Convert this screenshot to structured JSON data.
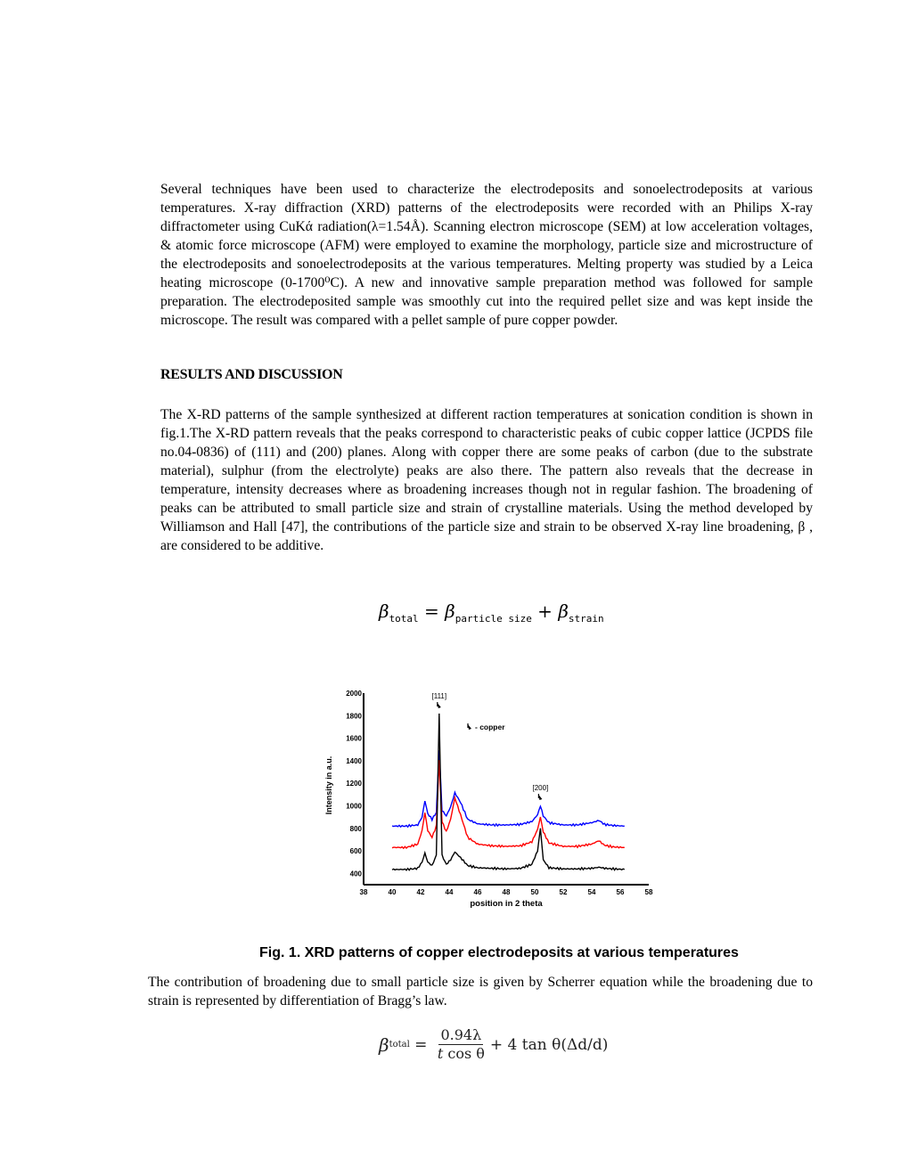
{
  "paragraphs": {
    "methods": "Several techniques have been used to characterize the electrodeposits and sonoelectrodeposits at various temperatures. X-ray diffraction (XRD) patterns of the electrodeposits were recorded with an Philips X-ray diffractometer using CuKά radiation(λ=1.54Å). Scanning electron microscope (SEM) at low acceleration voltages, & atomic force microscope (AFM) were employed to examine the morphology, particle size and microstructure of the electrodeposits and sonoelectrodeposits at the various temperatures. Melting property was studied by a Leica heating microscope (0-1700⁰C). A new and innovative sample preparation method was followed for sample preparation. The electrodeposited sample was smoothly cut into the required pellet size and was kept inside the microscope. The result was compared with a pellet sample of pure copper powder.",
    "results_heading": "RESULTS AND DISCUSSION",
    "results": "The X-RD patterns of the sample synthesized at different raction temperatures at sonication condition is shown in fig.1.The X-RD pattern reveals that the peaks correspond to characteristic peaks of cubic copper lattice (JCPDS file no.04-0836) of (111) and (200) planes. Along with copper there are some peaks of carbon (due to the substrate material), sulphur (from the electrolyte) peaks are also there. The pattern also reveals that the decrease in temperature, intensity decreases where as broadening increases though not in regular fashion. The broadening of peaks can be attributed to small particle size and strain of crystalline materials. Using the method developed by Williamson and Hall [47], the contributions of the particle size and strain to be observed X-ray line broadening, β , are considered to be additive.",
    "scherrer": "The contribution of broadening due to small particle size is given by Scherrer equation while the broadening due to strain is represented by differentiation of Bragg’s law."
  },
  "equations": {
    "eq1": {
      "beta": "β",
      "sub_total": "total",
      "equals": " = ",
      "sub_particle": "particle size",
      "plus": " + ",
      "sub_strain": "strain"
    },
    "eq2": {
      "beta": "β",
      "sub_total": "total",
      "equals": " = ",
      "numerator": "0.94λ",
      "denominator_t": "t",
      "denominator_rest": " cos θ",
      "tail": "+ 4 tan θ(Δd/d)"
    }
  },
  "figure": {
    "caption": "Fig. 1. XRD patterns of  copper electrodeposits at various temperatures"
  },
  "chart_data": {
    "type": "line",
    "title": "",
    "xlabel": "position in 2 theta",
    "ylabel": "Intensity in a.u.",
    "xlim": [
      38,
      58
    ],
    "ylim": [
      300,
      2000
    ],
    "x_ticks": [
      38,
      40,
      42,
      44,
      46,
      48,
      50,
      52,
      54,
      56,
      58
    ],
    "y_ticks": [
      400,
      600,
      800,
      1000,
      1200,
      1400,
      1600,
      1800,
      2000
    ],
    "grid": false,
    "legend": {
      "marker": "copper-marker",
      "text": "- copper",
      "position": "upper-center"
    },
    "annotations": [
      {
        "text": "[111]",
        "x": 43.3,
        "marker": true
      },
      {
        "text": "[200]",
        "x": 50.4,
        "marker": true
      }
    ],
    "x": [
      40.0,
      41.0,
      41.8,
      42.1,
      42.3,
      42.5,
      42.8,
      43.1,
      43.3,
      43.5,
      43.8,
      44.1,
      44.4,
      44.8,
      45.3,
      46.0,
      47.0,
      48.0,
      49.0,
      49.8,
      50.2,
      50.4,
      50.6,
      51.0,
      52.0,
      53.0,
      54.0,
      54.5,
      54.9,
      55.5,
      56.3
    ],
    "series": [
      {
        "name": "top (blue)",
        "color": "#0000ff",
        "values": [
          820,
          820,
          830,
          900,
          1045,
          930,
          880,
          940,
          1500,
          960,
          910,
          990,
          1115,
          1030,
          880,
          840,
          830,
          830,
          835,
          860,
          920,
          1000,
          910,
          850,
          830,
          830,
          850,
          870,
          835,
          825,
          820
        ]
      },
      {
        "name": "middle (red)",
        "color": "#ff0000",
        "values": [
          630,
          630,
          660,
          780,
          940,
          780,
          720,
          820,
          1400,
          860,
          770,
          880,
          1070,
          920,
          720,
          660,
          645,
          640,
          645,
          680,
          790,
          900,
          770,
          670,
          640,
          640,
          660,
          690,
          650,
          635,
          630
        ]
      },
      {
        "name": "bottom (black)",
        "color": "#000000",
        "values": [
          435,
          435,
          445,
          500,
          580,
          500,
          470,
          560,
          1810,
          560,
          480,
          520,
          590,
          540,
          470,
          450,
          445,
          440,
          445,
          480,
          600,
          800,
          520,
          450,
          440,
          440,
          445,
          455,
          445,
          440,
          435
        ]
      }
    ]
  }
}
